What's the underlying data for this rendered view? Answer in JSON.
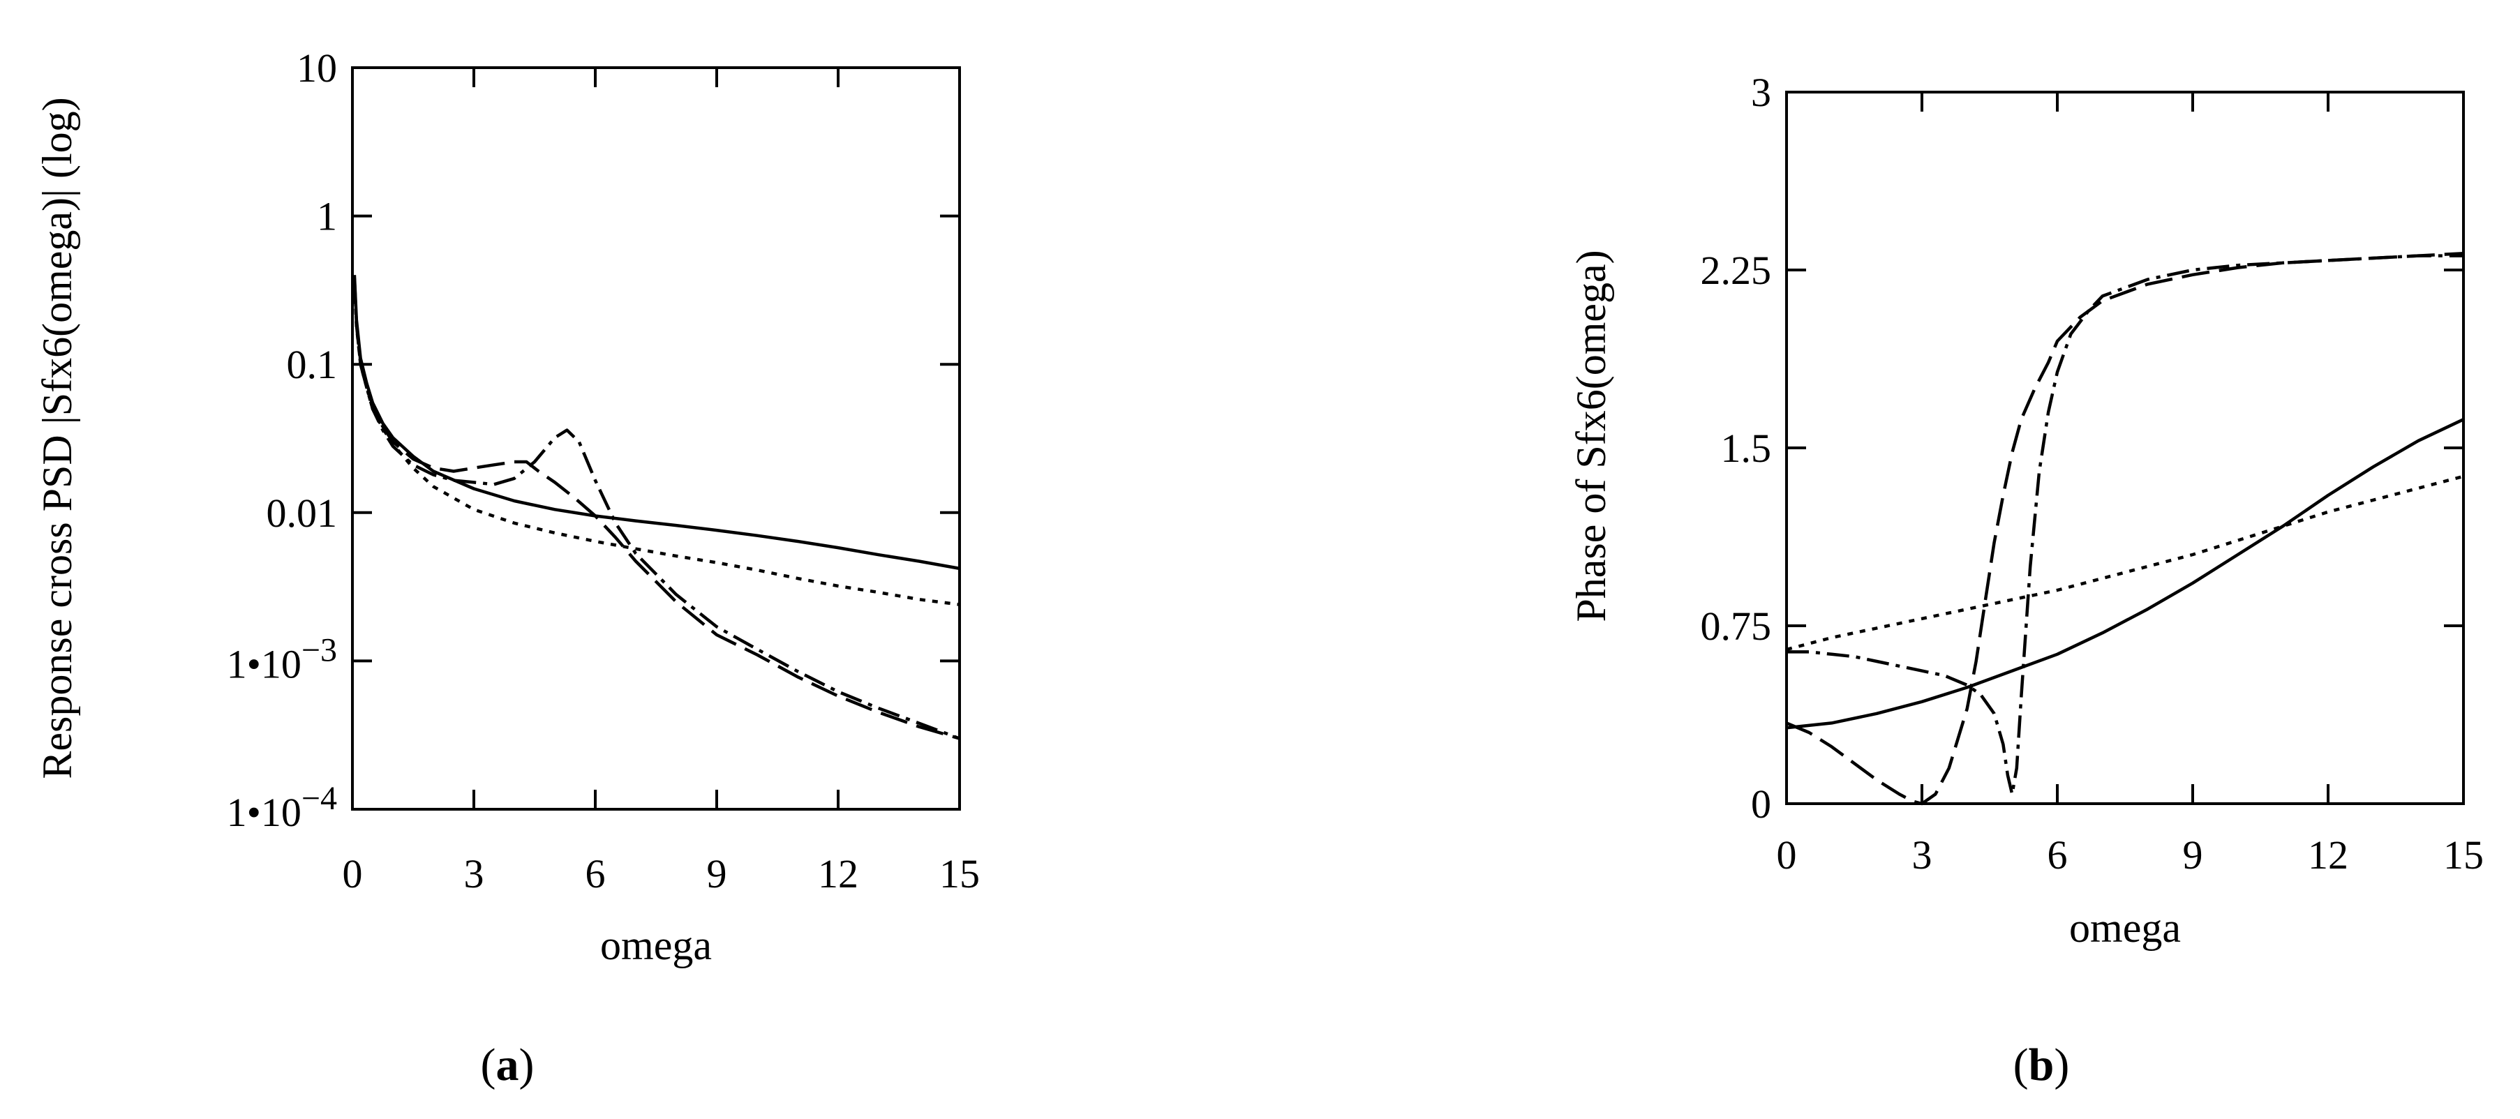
{
  "chart_data": [
    {
      "type": "line",
      "panel_label": "(a)",
      "panel_letter": "a",
      "xlabel": "omega",
      "ylabel": "Response cross PSD |Sfx6(omega)| (log)",
      "xlim": [
        0,
        15
      ],
      "ylim": [
        0.0001,
        10
      ],
      "yscale": "log",
      "grid": false,
      "x_ticks": [
        0,
        3,
        6,
        9,
        12,
        15
      ],
      "x_tick_labels": [
        "0",
        "3",
        "6",
        "9",
        "12",
        "15"
      ],
      "y_ticks": [
        0.0001,
        0.001,
        0.01,
        0.1,
        1,
        10
      ],
      "y_tick_labels": [
        {
          "mantissa": "1•10",
          "exponent": "−4"
        },
        {
          "mantissa": "1•10",
          "exponent": "−3"
        },
        {
          "text": "0.01"
        },
        {
          "text": "0.1"
        },
        {
          "text": "1"
        },
        {
          "text": "10"
        }
      ],
      "series": [
        {
          "style": "solid",
          "x": [
            0.05,
            0.1,
            0.2,
            0.35,
            0.5,
            0.75,
            1,
            1.5,
            2,
            3,
            4,
            5,
            6,
            7,
            8,
            9,
            10,
            11,
            12,
            13,
            14,
            15
          ],
          "y": [
            0.4,
            0.2,
            0.11,
            0.075,
            0.055,
            0.04,
            0.032,
            0.024,
            0.019,
            0.0145,
            0.012,
            0.0105,
            0.0095,
            0.0088,
            0.0082,
            0.0076,
            0.007,
            0.0064,
            0.0058,
            0.0052,
            0.0047,
            0.0042
          ]
        },
        {
          "style": "dotted",
          "x": [
            0.05,
            0.1,
            0.2,
            0.35,
            0.5,
            0.75,
            1,
            1.5,
            2,
            3,
            4,
            5,
            6,
            7,
            8,
            9,
            10,
            11,
            12,
            13,
            14,
            15
          ],
          "y": [
            0.35,
            0.18,
            0.1,
            0.07,
            0.05,
            0.037,
            0.029,
            0.02,
            0.015,
            0.0105,
            0.0085,
            0.0073,
            0.0064,
            0.0057,
            0.0051,
            0.0046,
            0.0041,
            0.0036,
            0.0032,
            0.0029,
            0.0026,
            0.0024
          ]
        },
        {
          "style": "dashed",
          "x": [
            0.05,
            0.1,
            0.2,
            0.35,
            0.5,
            0.75,
            1,
            1.5,
            2,
            2.5,
            3,
            3.5,
            4,
            4.3,
            4.6,
            5,
            5.5,
            6,
            6.5,
            7,
            8,
            9,
            10,
            11,
            12,
            13,
            14,
            15
          ],
          "y": [
            0.38,
            0.19,
            0.105,
            0.072,
            0.053,
            0.038,
            0.03,
            0.023,
            0.02,
            0.019,
            0.02,
            0.021,
            0.022,
            0.022,
            0.019,
            0.016,
            0.0125,
            0.0095,
            0.0068,
            0.0047,
            0.0025,
            0.0015,
            0.0011,
            0.00078,
            0.00058,
            0.00045,
            0.00036,
            0.0003
          ]
        },
        {
          "style": "dash-dot",
          "x": [
            0.05,
            0.1,
            0.2,
            0.35,
            0.5,
            0.75,
            1,
            1.5,
            2,
            2.5,
            3,
            3.5,
            4,
            4.5,
            5,
            5.3,
            5.6,
            6,
            6.5,
            7,
            8,
            9,
            10,
            11,
            12,
            13,
            14,
            15
          ],
          "y": [
            0.36,
            0.185,
            0.1,
            0.07,
            0.05,
            0.036,
            0.028,
            0.021,
            0.018,
            0.0165,
            0.016,
            0.0155,
            0.017,
            0.022,
            0.032,
            0.036,
            0.03,
            0.0165,
            0.0085,
            0.0053,
            0.0028,
            0.0017,
            0.0012,
            0.00085,
            0.00062,
            0.00048,
            0.00038,
            0.0003
          ]
        }
      ]
    },
    {
      "type": "line",
      "panel_label": "(b)",
      "panel_letter": "b",
      "xlabel": "omega",
      "ylabel": "Phase of Sfx6(omega)",
      "xlim": [
        0,
        15
      ],
      "ylim": [
        0,
        3
      ],
      "yscale": "linear",
      "grid": false,
      "x_ticks": [
        0,
        3,
        6,
        9,
        12,
        15
      ],
      "x_tick_labels": [
        "0",
        "3",
        "6",
        "9",
        "12",
        "15"
      ],
      "y_ticks": [
        0,
        0.75,
        1.5,
        2.25,
        3
      ],
      "y_tick_labels": [
        {
          "text": "0"
        },
        {
          "text": "0.75"
        },
        {
          "text": "1.5"
        },
        {
          "text": "2.25"
        },
        {
          "text": "3"
        }
      ],
      "series": [
        {
          "style": "solid",
          "x": [
            0,
            1,
            2,
            3,
            4,
            5,
            6,
            7,
            8,
            9,
            10,
            11,
            12,
            13,
            14,
            15
          ],
          "y": [
            0.32,
            0.34,
            0.38,
            0.43,
            0.49,
            0.56,
            0.63,
            0.72,
            0.82,
            0.93,
            1.05,
            1.17,
            1.3,
            1.42,
            1.53,
            1.62
          ]
        },
        {
          "style": "dotted",
          "x": [
            0,
            1,
            2,
            3,
            4,
            5,
            6,
            7,
            8,
            9,
            10,
            11,
            12,
            13,
            14,
            15
          ],
          "y": [
            0.65,
            0.7,
            0.74,
            0.78,
            0.82,
            0.86,
            0.9,
            0.95,
            1.0,
            1.05,
            1.11,
            1.17,
            1.23,
            1.28,
            1.33,
            1.38
          ]
        },
        {
          "style": "dashed",
          "x": [
            0,
            0.5,
            1,
            1.5,
            2,
            2.5,
            2.8,
            3,
            3.3,
            3.6,
            4,
            4.2,
            4.4,
            4.6,
            4.8,
            5,
            5.2,
            5.5,
            5.8,
            6,
            6.5,
            7,
            8,
            9,
            10,
            11,
            12,
            13,
            14,
            15
          ],
          "y": [
            0.34,
            0.3,
            0.24,
            0.17,
            0.1,
            0.04,
            0.01,
            0.0,
            0.04,
            0.15,
            0.4,
            0.6,
            0.85,
            1.1,
            1.3,
            1.48,
            1.62,
            1.75,
            1.86,
            1.95,
            2.05,
            2.12,
            2.19,
            2.23,
            2.26,
            2.28,
            2.29,
            2.3,
            2.31,
            2.32
          ]
        },
        {
          "style": "dash-dot",
          "x": [
            0,
            0.5,
            1,
            1.5,
            2,
            2.5,
            3,
            3.5,
            4,
            4.3,
            4.6,
            4.8,
            4.9,
            5,
            5.1,
            5.2,
            5.4,
            5.6,
            5.8,
            6,
            6.3,
            6.7,
            7,
            8,
            9,
            10,
            11,
            12,
            13,
            14,
            15
          ],
          "y": [
            0.64,
            0.64,
            0.63,
            0.62,
            0.6,
            0.58,
            0.56,
            0.54,
            0.5,
            0.46,
            0.38,
            0.25,
            0.12,
            0.04,
            0.15,
            0.45,
            1.0,
            1.4,
            1.65,
            1.82,
            1.98,
            2.08,
            2.14,
            2.21,
            2.25,
            2.27,
            2.28,
            2.29,
            2.3,
            2.31,
            2.31
          ]
        }
      ]
    }
  ]
}
